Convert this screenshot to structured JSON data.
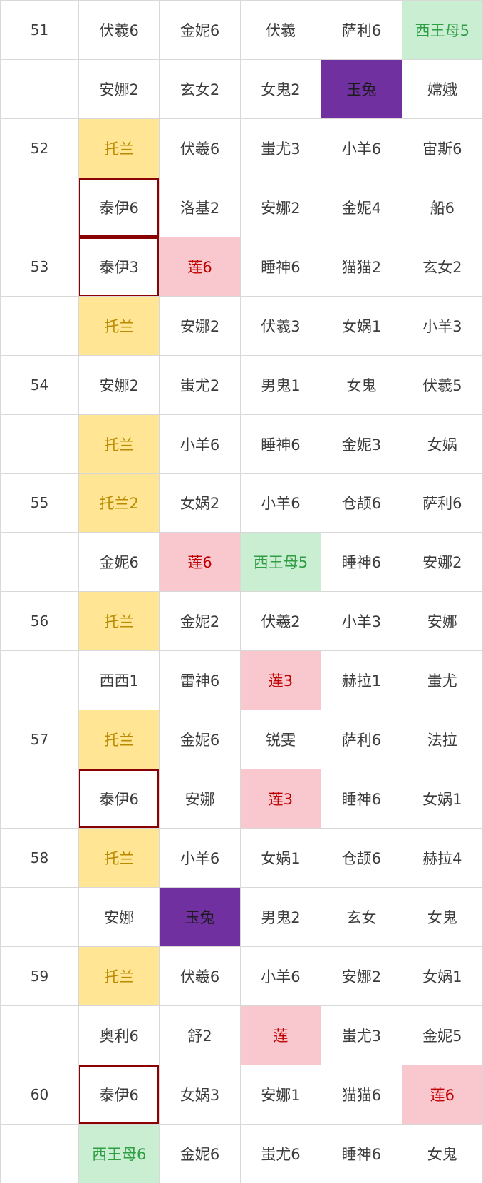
{
  "colors": {
    "grid_line": "#d8d8d8",
    "text_default": "#3c3c3c",
    "yellow_bg": "#ffe594",
    "yellow_text": "#ba8b00",
    "pink_bg": "#f9c8ce",
    "pink_text": "#c00000",
    "green_bg": "#c9eed2",
    "green_text": "#2f9e44",
    "purple_bg": "#7030a0",
    "purple_text": "#1b1b1b",
    "highlight_border": "#8b0000"
  },
  "table": {
    "columns": 6,
    "rows": [
      {
        "round": "51",
        "cells": [
          {
            "text": "伏羲6",
            "style": "plain"
          },
          {
            "text": "金妮6",
            "style": "plain"
          },
          {
            "text": "伏羲",
            "style": "plain"
          },
          {
            "text": "萨利6",
            "style": "plain"
          },
          {
            "text": "西王母5",
            "style": "green"
          }
        ]
      },
      {
        "round": "",
        "cells": [
          {
            "text": "安娜2",
            "style": "plain"
          },
          {
            "text": "玄女2",
            "style": "plain"
          },
          {
            "text": "女鬼2",
            "style": "plain"
          },
          {
            "text": "玉兔",
            "style": "purple"
          },
          {
            "text": "嫦娥",
            "style": "plain"
          }
        ]
      },
      {
        "round": "52",
        "cells": [
          {
            "text": "托兰",
            "style": "yellow"
          },
          {
            "text": "伏羲6",
            "style": "plain"
          },
          {
            "text": "蚩尤3",
            "style": "plain"
          },
          {
            "text": "小羊6",
            "style": "plain"
          },
          {
            "text": "宙斯6",
            "style": "plain"
          }
        ]
      },
      {
        "round": "",
        "cells": [
          {
            "text": "泰伊6",
            "style": "redborder"
          },
          {
            "text": "洛基2",
            "style": "plain"
          },
          {
            "text": "安娜2",
            "style": "plain"
          },
          {
            "text": "金妮4",
            "style": "plain"
          },
          {
            "text": "船6",
            "style": "plain"
          }
        ]
      },
      {
        "round": "53",
        "cells": [
          {
            "text": "泰伊3",
            "style": "redborder"
          },
          {
            "text": "莲6",
            "style": "pink"
          },
          {
            "text": "睡神6",
            "style": "plain"
          },
          {
            "text": "猫猫2",
            "style": "plain"
          },
          {
            "text": "玄女2",
            "style": "plain"
          }
        ]
      },
      {
        "round": "",
        "cells": [
          {
            "text": "托兰",
            "style": "yellow"
          },
          {
            "text": "安娜2",
            "style": "plain"
          },
          {
            "text": "伏羲3",
            "style": "plain"
          },
          {
            "text": "女娲1",
            "style": "plain"
          },
          {
            "text": "小羊3",
            "style": "plain"
          }
        ]
      },
      {
        "round": "54",
        "cells": [
          {
            "text": "安娜2",
            "style": "plain"
          },
          {
            "text": "蚩尤2",
            "style": "plain"
          },
          {
            "text": "男鬼1",
            "style": "plain"
          },
          {
            "text": "女鬼",
            "style": "plain"
          },
          {
            "text": "伏羲5",
            "style": "plain"
          }
        ]
      },
      {
        "round": "",
        "cells": [
          {
            "text": "托兰",
            "style": "yellow"
          },
          {
            "text": "小羊6",
            "style": "plain"
          },
          {
            "text": "睡神6",
            "style": "plain"
          },
          {
            "text": "金妮3",
            "style": "plain"
          },
          {
            "text": "女娲",
            "style": "plain"
          }
        ]
      },
      {
        "round": "55",
        "cells": [
          {
            "text": "托兰2",
            "style": "yellow"
          },
          {
            "text": "女娲2",
            "style": "plain"
          },
          {
            "text": "小羊6",
            "style": "plain"
          },
          {
            "text": "仓颉6",
            "style": "plain"
          },
          {
            "text": "萨利6",
            "style": "plain"
          }
        ]
      },
      {
        "round": "",
        "cells": [
          {
            "text": "金妮6",
            "style": "plain"
          },
          {
            "text": "莲6",
            "style": "pink"
          },
          {
            "text": "西王母5",
            "style": "green"
          },
          {
            "text": "睡神6",
            "style": "plain"
          },
          {
            "text": "安娜2",
            "style": "plain"
          }
        ]
      },
      {
        "round": "56",
        "cells": [
          {
            "text": "托兰",
            "style": "yellow"
          },
          {
            "text": "金妮2",
            "style": "plain"
          },
          {
            "text": "伏羲2",
            "style": "plain"
          },
          {
            "text": "小羊3",
            "style": "plain"
          },
          {
            "text": "安娜",
            "style": "plain"
          }
        ]
      },
      {
        "round": "",
        "cells": [
          {
            "text": "西西1",
            "style": "plain"
          },
          {
            "text": "雷神6",
            "style": "plain"
          },
          {
            "text": "莲3",
            "style": "pink"
          },
          {
            "text": "赫拉1",
            "style": "plain"
          },
          {
            "text": "蚩尤",
            "style": "plain"
          }
        ]
      },
      {
        "round": "57",
        "cells": [
          {
            "text": "托兰",
            "style": "yellow"
          },
          {
            "text": "金妮6",
            "style": "plain"
          },
          {
            "text": "锐雯",
            "style": "plain"
          },
          {
            "text": "萨利6",
            "style": "plain"
          },
          {
            "text": "法拉",
            "style": "plain"
          }
        ]
      },
      {
        "round": "",
        "cells": [
          {
            "text": "泰伊6",
            "style": "redborder"
          },
          {
            "text": "安娜",
            "style": "plain"
          },
          {
            "text": "莲3",
            "style": "pink"
          },
          {
            "text": "睡神6",
            "style": "plain"
          },
          {
            "text": "女娲1",
            "style": "plain"
          }
        ]
      },
      {
        "round": "58",
        "cells": [
          {
            "text": "托兰",
            "style": "yellow"
          },
          {
            "text": "小羊6",
            "style": "plain"
          },
          {
            "text": "女娲1",
            "style": "plain"
          },
          {
            "text": "仓颉6",
            "style": "plain"
          },
          {
            "text": "赫拉4",
            "style": "plain"
          }
        ]
      },
      {
        "round": "",
        "cells": [
          {
            "text": "安娜",
            "style": "plain"
          },
          {
            "text": "玉兔",
            "style": "purple"
          },
          {
            "text": "男鬼2",
            "style": "plain"
          },
          {
            "text": "玄女",
            "style": "plain"
          },
          {
            "text": "女鬼",
            "style": "plain"
          }
        ]
      },
      {
        "round": "59",
        "cells": [
          {
            "text": "托兰",
            "style": "yellow"
          },
          {
            "text": "伏羲6",
            "style": "plain"
          },
          {
            "text": "小羊6",
            "style": "plain"
          },
          {
            "text": "安娜2",
            "style": "plain"
          },
          {
            "text": "女娲1",
            "style": "plain"
          }
        ]
      },
      {
        "round": "",
        "cells": [
          {
            "text": "奥利6",
            "style": "plain"
          },
          {
            "text": "舒2",
            "style": "plain"
          },
          {
            "text": "莲",
            "style": "pink"
          },
          {
            "text": "蚩尤3",
            "style": "plain"
          },
          {
            "text": "金妮5",
            "style": "plain"
          }
        ]
      },
      {
        "round": "60",
        "cells": [
          {
            "text": "泰伊6",
            "style": "redborder"
          },
          {
            "text": "女娲3",
            "style": "plain"
          },
          {
            "text": "安娜1",
            "style": "plain"
          },
          {
            "text": "猫猫6",
            "style": "plain"
          },
          {
            "text": "莲6",
            "style": "pink"
          }
        ]
      },
      {
        "round": "",
        "cells": [
          {
            "text": "西王母6",
            "style": "green"
          },
          {
            "text": "金妮6",
            "style": "plain"
          },
          {
            "text": "蚩尤6",
            "style": "plain"
          },
          {
            "text": "睡神6",
            "style": "plain"
          },
          {
            "text": "女鬼",
            "style": "plain"
          }
        ]
      }
    ]
  }
}
